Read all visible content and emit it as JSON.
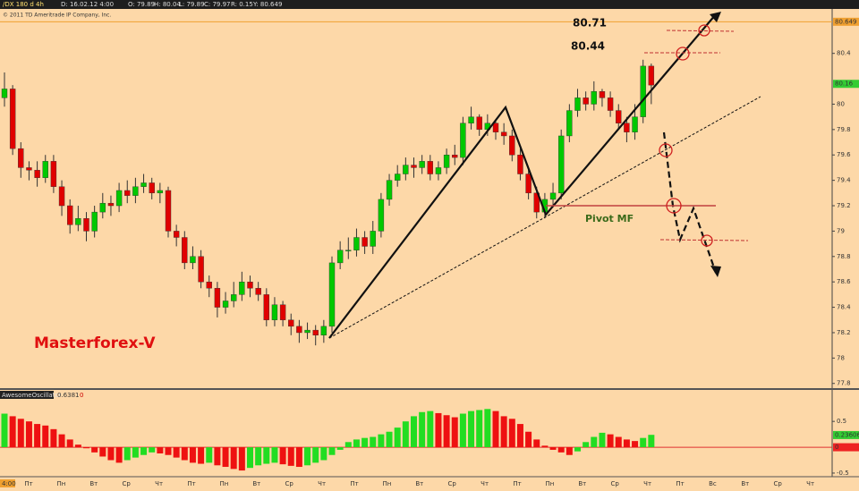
{
  "header": {
    "symbol": "/DX 180 d 4h",
    "date": "D: 16.02.12 4:00",
    "open": "O: 79.89",
    "high": "H: 80.04",
    "low": "L: 79.89",
    "close": "C: 79.97",
    "range": "R: 0.15",
    "last": "Y: 80.649",
    "copyright": "© 2011 TD Ameritrade IP Company, Inc."
  },
  "annotations": {
    "level_top": "80.71",
    "level_second": "80.44",
    "pivot": "Pivot MF",
    "brand": "Masterforex-V"
  },
  "time_axis": {
    "cursor_label": "4:00",
    "labels": [
      "Пт",
      "Пн",
      "Вт",
      "Ср",
      "Чт",
      "Пт",
      "Пн",
      "Вт",
      "Ср",
      "Чт",
      "Пт",
      "Пн",
      "Вт",
      "Ср",
      "Чт",
      "Пт",
      "Пн",
      "Вт",
      "Ср",
      "Чт",
      "Пт",
      "Вс",
      "Вт",
      "Ср",
      "Чт"
    ]
  },
  "chart_data": [
    {
      "type": "candlestick",
      "up_color": "#00c800",
      "down_color": "#e00000",
      "open": [
        80.05,
        80.12,
        79.65,
        79.5,
        79.48,
        79.42,
        79.55,
        79.35,
        79.2,
        79.05,
        79.1,
        79.0,
        79.15,
        79.22,
        79.2,
        79.32,
        79.28,
        79.35,
        79.38,
        79.3,
        79.32,
        79.0,
        78.95,
        78.75,
        78.8,
        78.6,
        78.55,
        78.4,
        78.45,
        78.5,
        78.6,
        78.55,
        78.5,
        78.3,
        78.42,
        78.3,
        78.25,
        78.2,
        78.22,
        78.18,
        78.25,
        78.75,
        78.85,
        78.85,
        78.95,
        78.88,
        79.0,
        79.25,
        79.4,
        79.45,
        79.52,
        79.5,
        79.55,
        79.45,
        79.5,
        79.6,
        79.58,
        79.85,
        79.9,
        79.8,
        79.85,
        79.78,
        79.75,
        79.6,
        79.45,
        79.3,
        79.15,
        79.25,
        79.3,
        79.75,
        79.95,
        80.05,
        80.0,
        80.1,
        80.05,
        79.95,
        79.85,
        79.78,
        79.9,
        80.3
      ],
      "high": [
        80.25,
        80.15,
        79.7,
        79.55,
        79.55,
        79.6,
        79.6,
        79.4,
        79.25,
        79.2,
        79.15,
        79.2,
        79.3,
        79.28,
        79.38,
        79.4,
        79.42,
        79.45,
        79.42,
        79.38,
        79.35,
        79.05,
        79.0,
        78.88,
        78.85,
        78.65,
        78.6,
        78.52,
        78.6,
        78.68,
        78.65,
        78.6,
        78.55,
        78.48,
        78.45,
        78.35,
        78.3,
        78.28,
        78.26,
        78.3,
        78.8,
        78.92,
        78.95,
        79.02,
        79.0,
        79.08,
        79.3,
        79.45,
        79.52,
        79.58,
        79.58,
        79.6,
        79.6,
        79.55,
        79.65,
        79.68,
        79.9,
        79.98,
        79.92,
        79.92,
        79.88,
        79.85,
        79.8,
        79.65,
        79.5,
        79.35,
        79.3,
        79.38,
        79.8,
        80.0,
        80.12,
        80.1,
        80.18,
        80.12,
        80.1,
        80.0,
        79.9,
        80.0,
        80.35,
        80.32
      ],
      "low": [
        79.98,
        79.6,
        79.42,
        79.4,
        79.35,
        79.38,
        79.3,
        79.12,
        78.98,
        79.0,
        78.92,
        78.95,
        79.1,
        79.12,
        79.15,
        79.22,
        79.22,
        79.3,
        79.25,
        79.22,
        78.95,
        78.88,
        78.7,
        78.7,
        78.55,
        78.48,
        78.32,
        78.35,
        78.4,
        78.45,
        78.48,
        78.45,
        78.25,
        78.25,
        78.25,
        78.18,
        78.12,
        78.15,
        78.1,
        78.12,
        78.2,
        78.7,
        78.78,
        78.8,
        78.82,
        78.82,
        78.95,
        79.2,
        79.35,
        79.4,
        79.42,
        79.45,
        79.4,
        79.4,
        79.45,
        79.52,
        79.52,
        79.8,
        79.75,
        79.75,
        79.72,
        79.68,
        79.55,
        79.4,
        79.25,
        79.1,
        79.1,
        79.2,
        79.25,
        79.7,
        79.9,
        79.95,
        79.95,
        79.98,
        79.9,
        79.8,
        79.7,
        79.72,
        79.85,
        80.0
      ],
      "close": [
        80.12,
        79.65,
        79.5,
        79.48,
        79.42,
        79.55,
        79.35,
        79.2,
        79.05,
        79.1,
        79.0,
        79.15,
        79.22,
        79.2,
        79.32,
        79.28,
        79.35,
        79.38,
        79.3,
        79.32,
        79.0,
        78.95,
        78.75,
        78.8,
        78.6,
        78.55,
        78.4,
        78.45,
        78.5,
        78.6,
        78.55,
        78.5,
        78.3,
        78.42,
        78.3,
        78.25,
        78.2,
        78.22,
        78.18,
        78.25,
        78.75,
        78.85,
        78.85,
        78.95,
        78.88,
        79.0,
        79.25,
        79.4,
        79.45,
        79.52,
        79.5,
        79.55,
        79.45,
        79.5,
        79.6,
        79.58,
        79.85,
        79.9,
        79.8,
        79.85,
        79.78,
        79.75,
        79.6,
        79.45,
        79.3,
        79.15,
        79.25,
        79.3,
        79.75,
        79.95,
        80.05,
        80.0,
        80.1,
        80.05,
        79.95,
        79.85,
        79.78,
        79.9,
        80.3,
        80.15
      ],
      "ylim": [
        77.77,
        80.75
      ],
      "yticks": [
        77.8,
        78,
        78.2,
        78.4,
        78.6,
        78.8,
        79,
        79.2,
        79.4,
        79.6,
        79.8,
        80,
        80.4
      ],
      "price_markers": [
        {
          "value": 80.649,
          "color": "#f0a030"
        },
        {
          "value": 80.16,
          "color": "#33cc33"
        }
      ]
    },
    {
      "type": "bar",
      "title": "AwesomeOscillator",
      "current": "0.6381",
      "zero": "0",
      "up_color": "#22dd22",
      "down_color": "#ee1111",
      "values": [
        0.65,
        0.6,
        0.55,
        0.5,
        0.45,
        0.42,
        0.35,
        0.25,
        0.15,
        0.05,
        -0.02,
        -0.1,
        -0.18,
        -0.25,
        -0.3,
        -0.25,
        -0.2,
        -0.15,
        -0.1,
        -0.12,
        -0.15,
        -0.2,
        -0.25,
        -0.3,
        -0.32,
        -0.3,
        -0.35,
        -0.38,
        -0.42,
        -0.45,
        -0.4,
        -0.35,
        -0.32,
        -0.3,
        -0.33,
        -0.36,
        -0.38,
        -0.35,
        -0.3,
        -0.25,
        -0.15,
        -0.05,
        0.1,
        0.15,
        0.18,
        0.2,
        0.25,
        0.3,
        0.38,
        0.5,
        0.6,
        0.68,
        0.7,
        0.66,
        0.62,
        0.58,
        0.65,
        0.7,
        0.72,
        0.74,
        0.7,
        0.6,
        0.55,
        0.45,
        0.3,
        0.15,
        0.03,
        -0.05,
        -0.1,
        -0.15,
        -0.08,
        0.1,
        0.2,
        0.28,
        0.25,
        0.2,
        0.15,
        0.12,
        0.18,
        0.24
      ],
      "ylim": [
        -0.57,
        0.78
      ],
      "yticks": [
        -0.5,
        0.5
      ],
      "price_markers": [
        {
          "value": 0.23606,
          "color": "#33cc33"
        },
        {
          "value": 0,
          "color": "#ee2222"
        }
      ]
    }
  ]
}
